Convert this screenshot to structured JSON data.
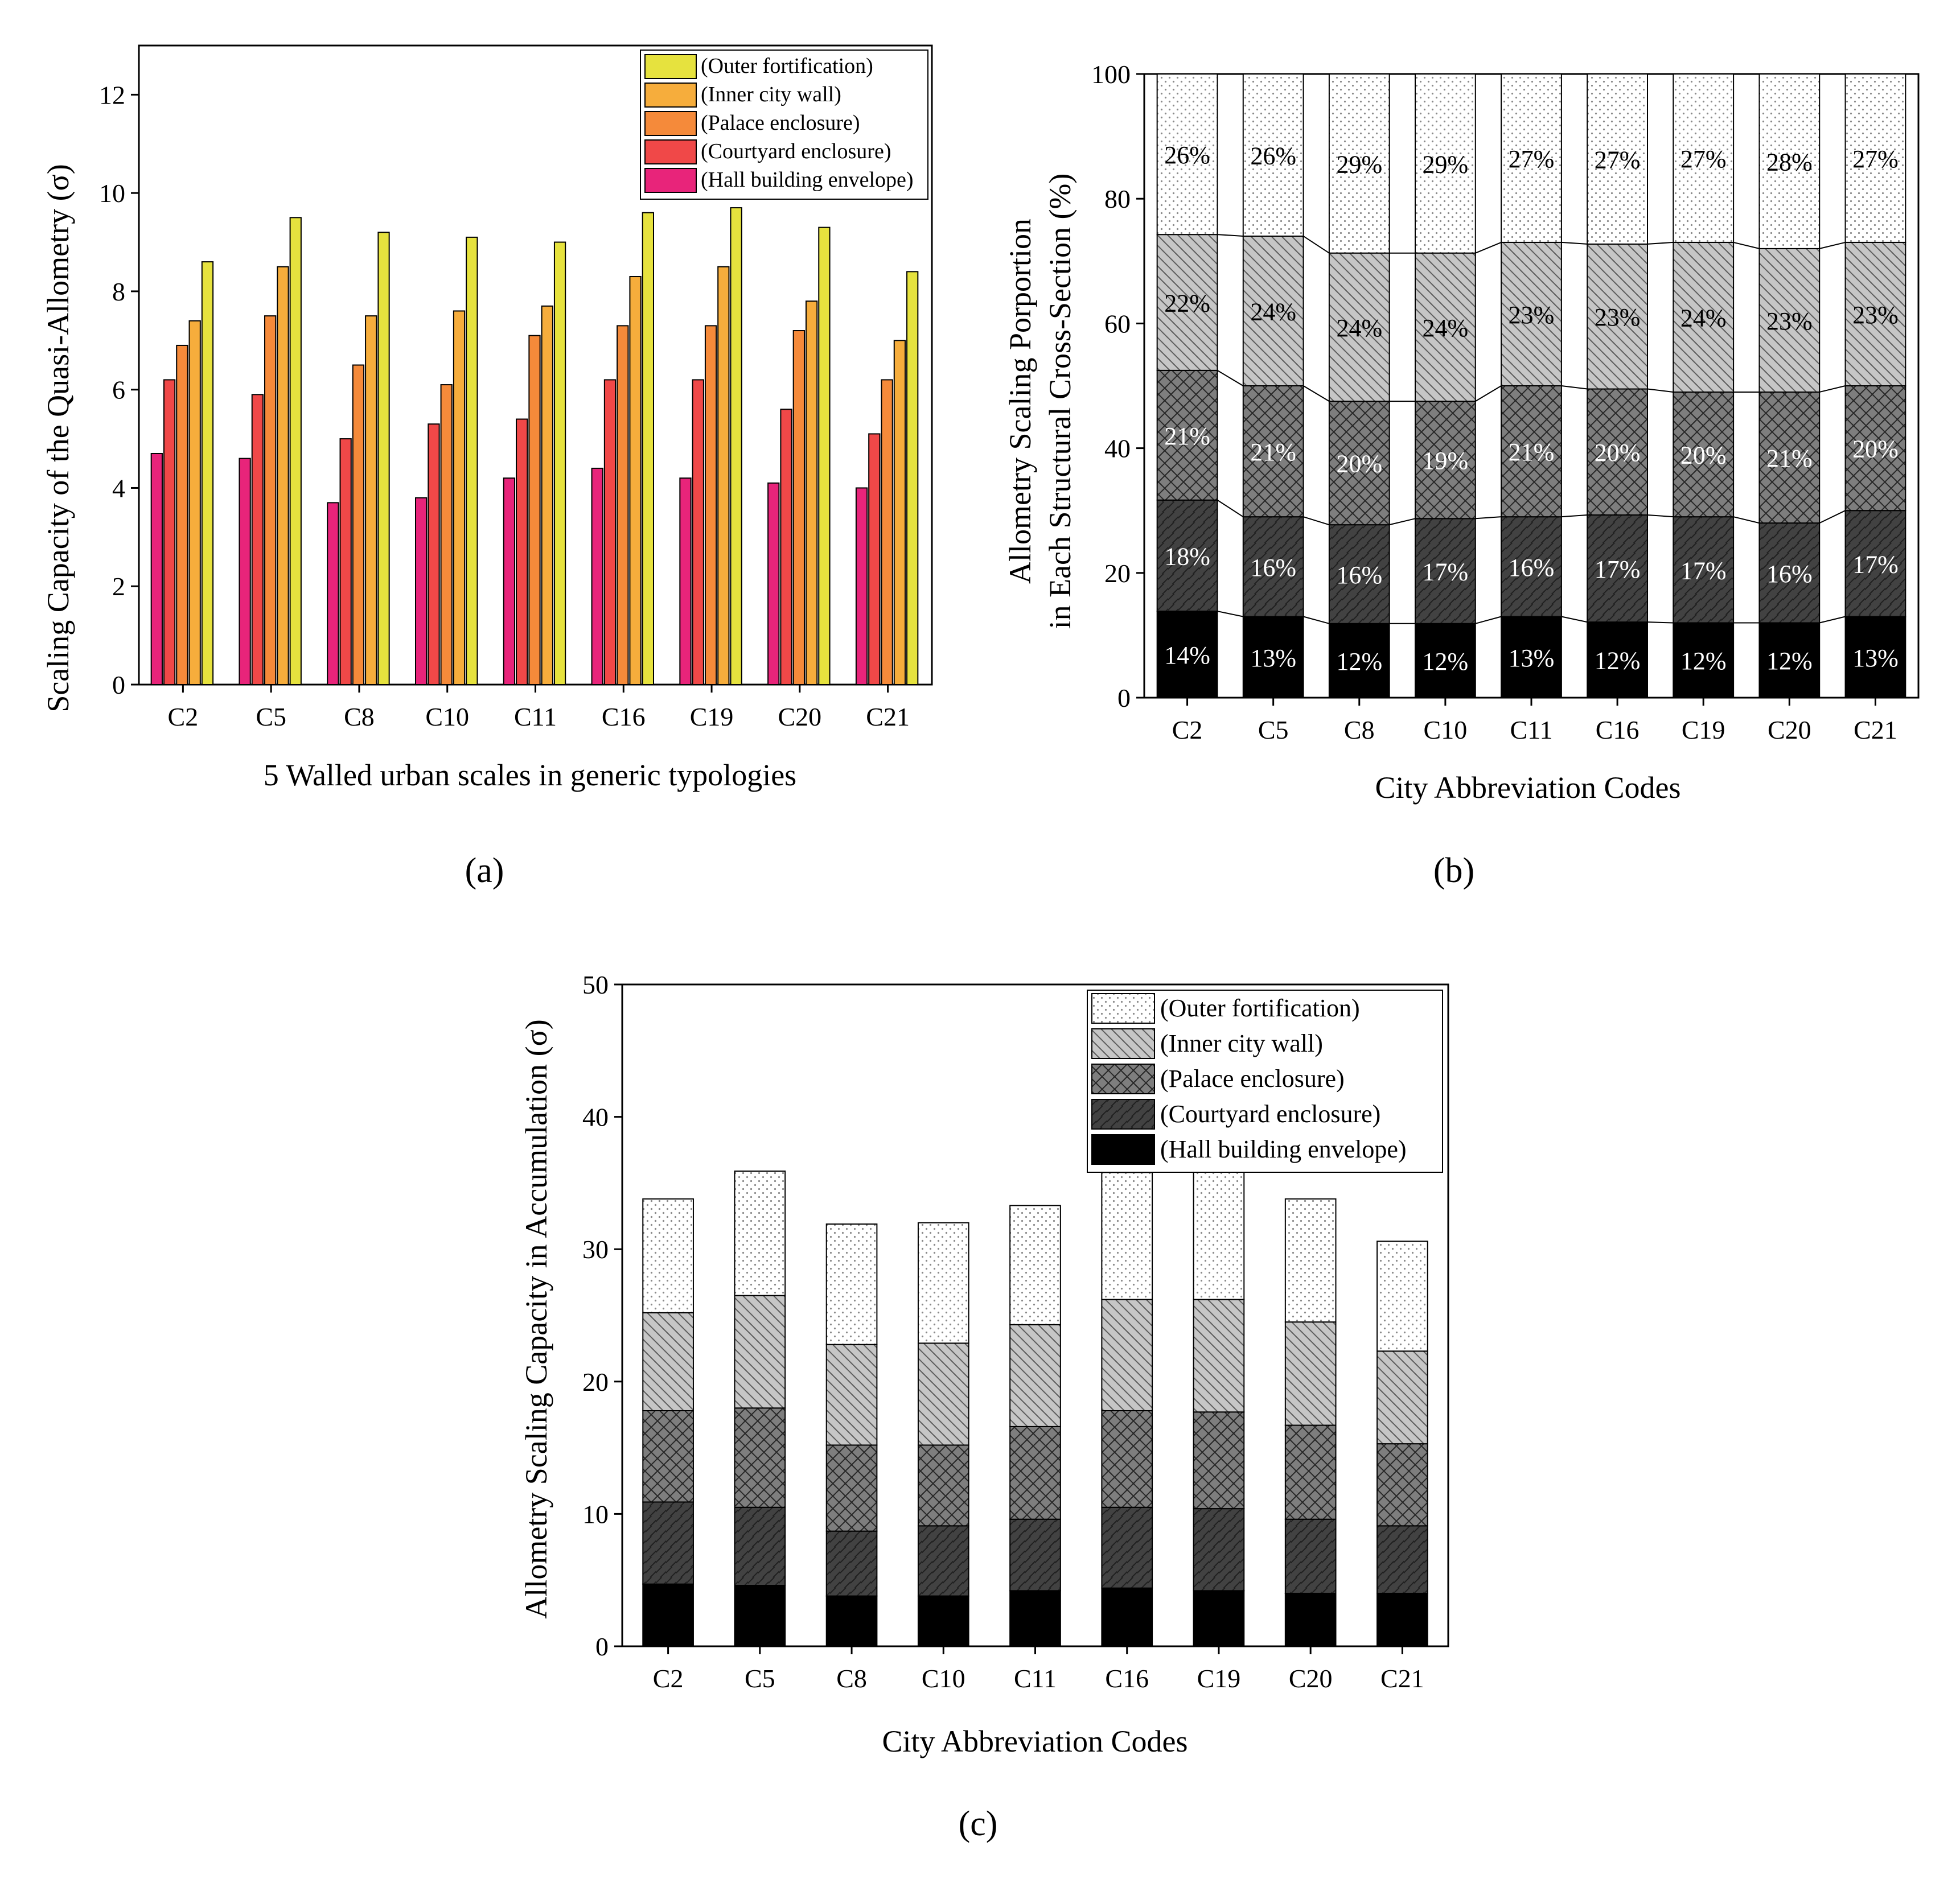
{
  "chart_data": [
    {
      "type": "bar",
      "panel_label": "(a)",
      "panel_letter": "a",
      "categories": [
        "C2",
        "C5",
        "C8",
        "C10",
        "C11",
        "C16",
        "C19",
        "C20",
        "C21"
      ],
      "series": [
        {
          "name": "(Hall building envelope)",
          "color": "#e8247a",
          "values": [
            4.7,
            4.6,
            3.7,
            3.8,
            4.2,
            4.4,
            4.2,
            4.1,
            4.0
          ]
        },
        {
          "name": "(Courtyard enclosure)",
          "color": "#f04848",
          "values": [
            6.2,
            5.9,
            5.0,
            5.3,
            5.4,
            6.2,
            6.2,
            5.6,
            5.1
          ]
        },
        {
          "name": "(Palace enclosure)",
          "color": "#f58a3a",
          "values": [
            6.9,
            7.5,
            6.5,
            6.1,
            7.1,
            7.3,
            7.3,
            7.2,
            6.2
          ]
        },
        {
          "name": "(Inner city wall)",
          "color": "#f6ad3c",
          "values": [
            7.4,
            8.5,
            7.5,
            7.6,
            7.7,
            8.3,
            8.5,
            7.8,
            7.0
          ]
        },
        {
          "name": "(Outer fortification)",
          "color": "#e6e23e",
          "values": [
            8.6,
            9.5,
            9.2,
            9.1,
            9.0,
            9.6,
            9.7,
            9.3,
            8.4
          ]
        }
      ],
      "legend_order": [
        4,
        3,
        2,
        1,
        0
      ],
      "ylim": [
        0,
        13
      ],
      "yticks": [
        0,
        2,
        4,
        6,
        8,
        10,
        12
      ],
      "xlabel": "5 Walled urban scales in generic typologies",
      "ylabel": "Scaling Capacity of the Quasi-Allometry (σ)"
    },
    {
      "type": "bar",
      "stacked": true,
      "percent": true,
      "panel_label": "(b)",
      "panel_letter": "b",
      "categories": [
        "C2",
        "C5",
        "C8",
        "C10",
        "C11",
        "C16",
        "C19",
        "C20",
        "C21"
      ],
      "series": [
        {
          "name": "(Hall building envelope)",
          "values": [
            14,
            13,
            12,
            12,
            13,
            12,
            12,
            12,
            13
          ],
          "labels": [
            "14%",
            "13%",
            "12%",
            "12%",
            "13%",
            "12%",
            "12%",
            "12%",
            "13%"
          ]
        },
        {
          "name": "(Courtyard enclosure)",
          "values": [
            18,
            16,
            16,
            17,
            16,
            17,
            17,
            16,
            17
          ],
          "labels": [
            "18%",
            "16%",
            "16%",
            "17%",
            "16%",
            "17%",
            "17%",
            "16%",
            "17%"
          ]
        },
        {
          "name": "(Palace enclosure)",
          "values": [
            21,
            21,
            20,
            19,
            21,
            20,
            20,
            21,
            20
          ],
          "labels": [
            "21%",
            "21%",
            "20%",
            "19%",
            "21%",
            "20%",
            "20%",
            "21%",
            "20%"
          ]
        },
        {
          "name": "(Inner city wall)",
          "values": [
            22,
            24,
            24,
            24,
            23,
            23,
            24,
            23,
            23
          ],
          "labels": [
            "22%",
            "24%",
            "24%",
            "24%",
            "23%",
            "23%",
            "24%",
            "23%",
            "23%"
          ]
        },
        {
          "name": "(Outer fortification)",
          "values": [
            26,
            26,
            29,
            29,
            27,
            27,
            27,
            28,
            27
          ],
          "labels": [
            "26%",
            "26%",
            "29%",
            "29%",
            "27%",
            "27%",
            "27%",
            "28%",
            "27%"
          ]
        }
      ],
      "ylim": [
        0,
        100
      ],
      "yticks": [
        0,
        20,
        40,
        60,
        80,
        100
      ],
      "xlabel": "City Abbreviation Codes",
      "ylabel_line1": "Allometry Scaling Porportion",
      "ylabel_line2": "in Each Structural Cross-Section  (%)"
    },
    {
      "type": "bar",
      "stacked": true,
      "panel_label": "(c)",
      "panel_letter": "c",
      "categories": [
        "C2",
        "C5",
        "C8",
        "C10",
        "C11",
        "C16",
        "C19",
        "C20",
        "C21"
      ],
      "series": [
        {
          "name": "(Hall building envelope)",
          "values": [
            4.7,
            4.6,
            3.8,
            3.8,
            4.2,
            4.4,
            4.2,
            4.0,
            4.0
          ]
        },
        {
          "name": "(Courtyard enclosure)",
          "values": [
            6.2,
            5.9,
            4.9,
            5.3,
            5.4,
            6.1,
            6.2,
            5.6,
            5.1
          ]
        },
        {
          "name": "(Palace enclosure)",
          "values": [
            6.9,
            7.5,
            6.5,
            6.1,
            7.0,
            7.3,
            7.3,
            7.1,
            6.2
          ]
        },
        {
          "name": "(Inner city wall)",
          "values": [
            7.4,
            8.5,
            7.6,
            7.7,
            7.7,
            8.4,
            8.5,
            7.8,
            7.0
          ]
        },
        {
          "name": "(Outer fortification)",
          "values": [
            8.6,
            9.4,
            9.1,
            9.1,
            9.0,
            9.6,
            9.7,
            9.3,
            8.3
          ]
        }
      ],
      "legend_order": [
        4,
        3,
        2,
        1,
        0
      ],
      "ylim": [
        0,
        50
      ],
      "yticks": [
        0,
        10,
        20,
        30,
        40,
        50
      ],
      "xlabel": "City Abbreviation Codes",
      "ylabel": "Allometry Scaling Capacity in Accumulation (σ)"
    }
  ]
}
